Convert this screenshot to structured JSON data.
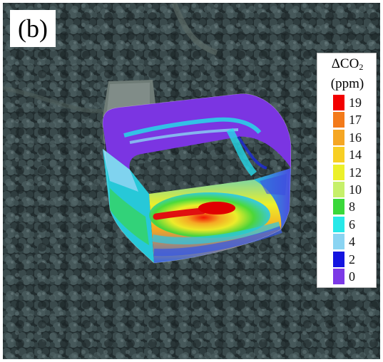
{
  "panel_label": "(b)",
  "legend": {
    "title_main": "ΔCO",
    "title_sub": "2",
    "unit": "(ppm)",
    "ticks": [
      "19",
      "17",
      "16",
      "14",
      "12",
      "10",
      "8",
      "6",
      "4",
      "2",
      "0"
    ],
    "colors": [
      "#f20000",
      "#f37a1a",
      "#f5a623",
      "#f7cf24",
      "#ecf02a",
      "#c6f06a",
      "#3ad83a",
      "#27e8e8",
      "#8ad4f2",
      "#1414e0",
      "#7c3ae6"
    ]
  },
  "scene": {
    "description_colors": {
      "forest_dark": "#1f2a2c",
      "forest_mid": "#3b4a4c",
      "clearing": "#6d7a74"
    }
  }
}
